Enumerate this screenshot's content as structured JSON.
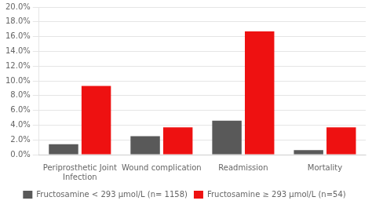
{
  "chart_data": {
    "type": "bar",
    "categories": [
      "Periprosthetic Joint\nInfection",
      "Wound complication",
      "Readmission",
      "Mortality"
    ],
    "series": [
      {
        "name": "Fructosamine < 293 μmol/L (n= 1158)",
        "color": "#595959",
        "values": [
          1.4,
          2.5,
          4.6,
          0.6
        ]
      },
      {
        "name": "Fructosamine ≥ 293 μmol/L (n=54)",
        "color": "#ee1111",
        "values": [
          9.3,
          3.7,
          16.7,
          3.7
        ]
      }
    ],
    "ylim": [
      0,
      20
    ],
    "yticks": [
      {
        "value": 0,
        "label": "0.0%"
      },
      {
        "value": 2,
        "label": "2.0%"
      },
      {
        "value": 4,
        "label": "4.0%"
      },
      {
        "value": 6,
        "label": "6.0%"
      },
      {
        "value": 8,
        "label": "8.0%"
      },
      {
        "value": 10,
        "label": "10.0%"
      },
      {
        "value": 12,
        "label": "12.0%"
      },
      {
        "value": 14,
        "label": "14.0%"
      },
      {
        "value": 16,
        "label": "16.0%"
      },
      {
        "value": 18,
        "label": "18.0%"
      },
      {
        "value": 20,
        "label": "20.0%"
      }
    ],
    "grid": true,
    "legend": "bottom"
  }
}
